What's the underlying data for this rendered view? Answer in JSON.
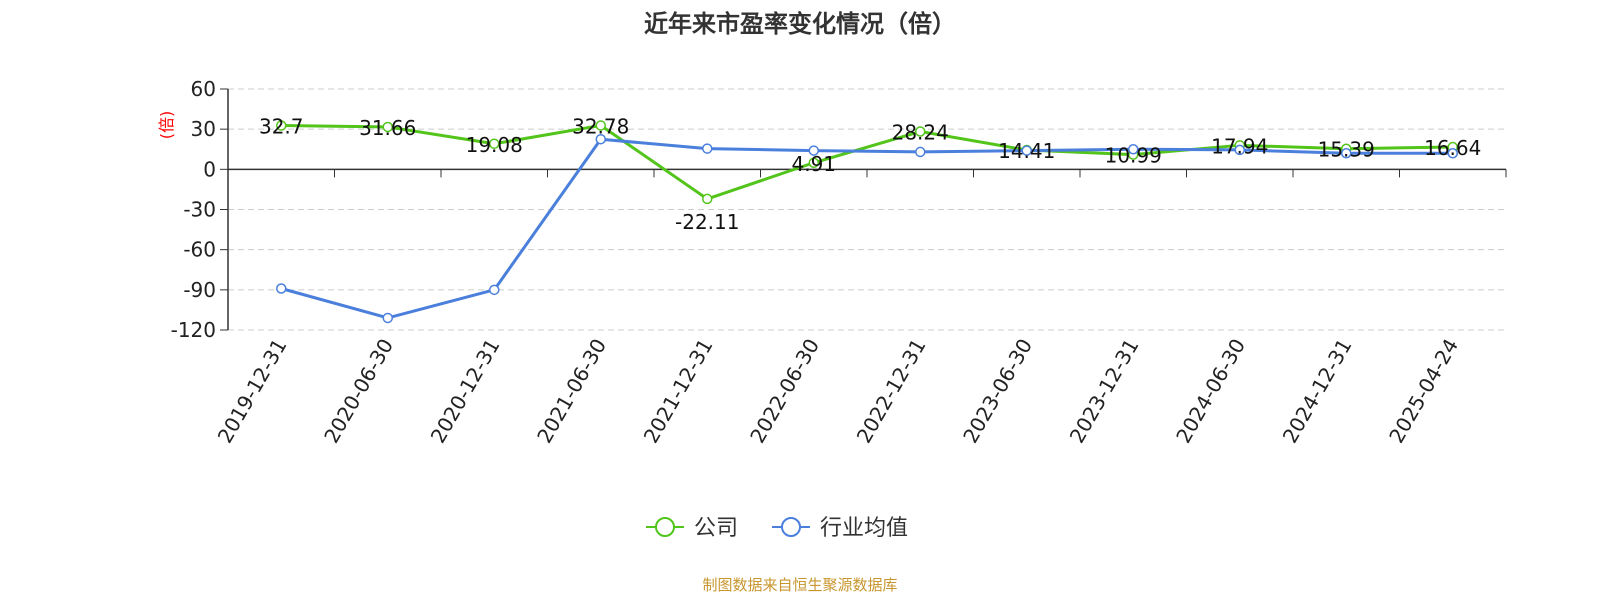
{
  "chart_data": {
    "type": "line",
    "title": "近年来市盈率变化情况（倍）",
    "ylabel": "(倍)",
    "xlabel": "",
    "categories": [
      "2019-12-31",
      "2020-06-30",
      "2020-12-31",
      "2021-06-30",
      "2021-12-31",
      "2022-06-30",
      "2022-12-31",
      "2023-06-30",
      "2023-12-31",
      "2024-06-30",
      "2024-12-31",
      "2025-04-24"
    ],
    "yticks": [
      60,
      30,
      0,
      -30,
      -60,
      -90,
      -120
    ],
    "ylim": [
      -120,
      60
    ],
    "grid": true,
    "legend_position": "bottom",
    "series": [
      {
        "name": "公司",
        "color": "#52c41a",
        "values": [
          32.7,
          31.66,
          19.08,
          32.78,
          -22.11,
          4.91,
          28.24,
          14.41,
          10.99,
          17.94,
          15.39,
          16.64
        ],
        "labels": [
          "32.7",
          "31.66",
          "19.08",
          "32.78",
          "-22.11",
          "4.91",
          "28.24",
          "14.41",
          "10.99",
          "17.94",
          "15.39",
          "16.64"
        ]
      },
      {
        "name": "行业均值",
        "color": "#4a7fdc",
        "values": [
          -89,
          -111,
          -90,
          22.5,
          15.5,
          14,
          13,
          14,
          15,
          14.5,
          12,
          12
        ]
      }
    ]
  },
  "source": "制图数据来自恒生聚源数据库"
}
